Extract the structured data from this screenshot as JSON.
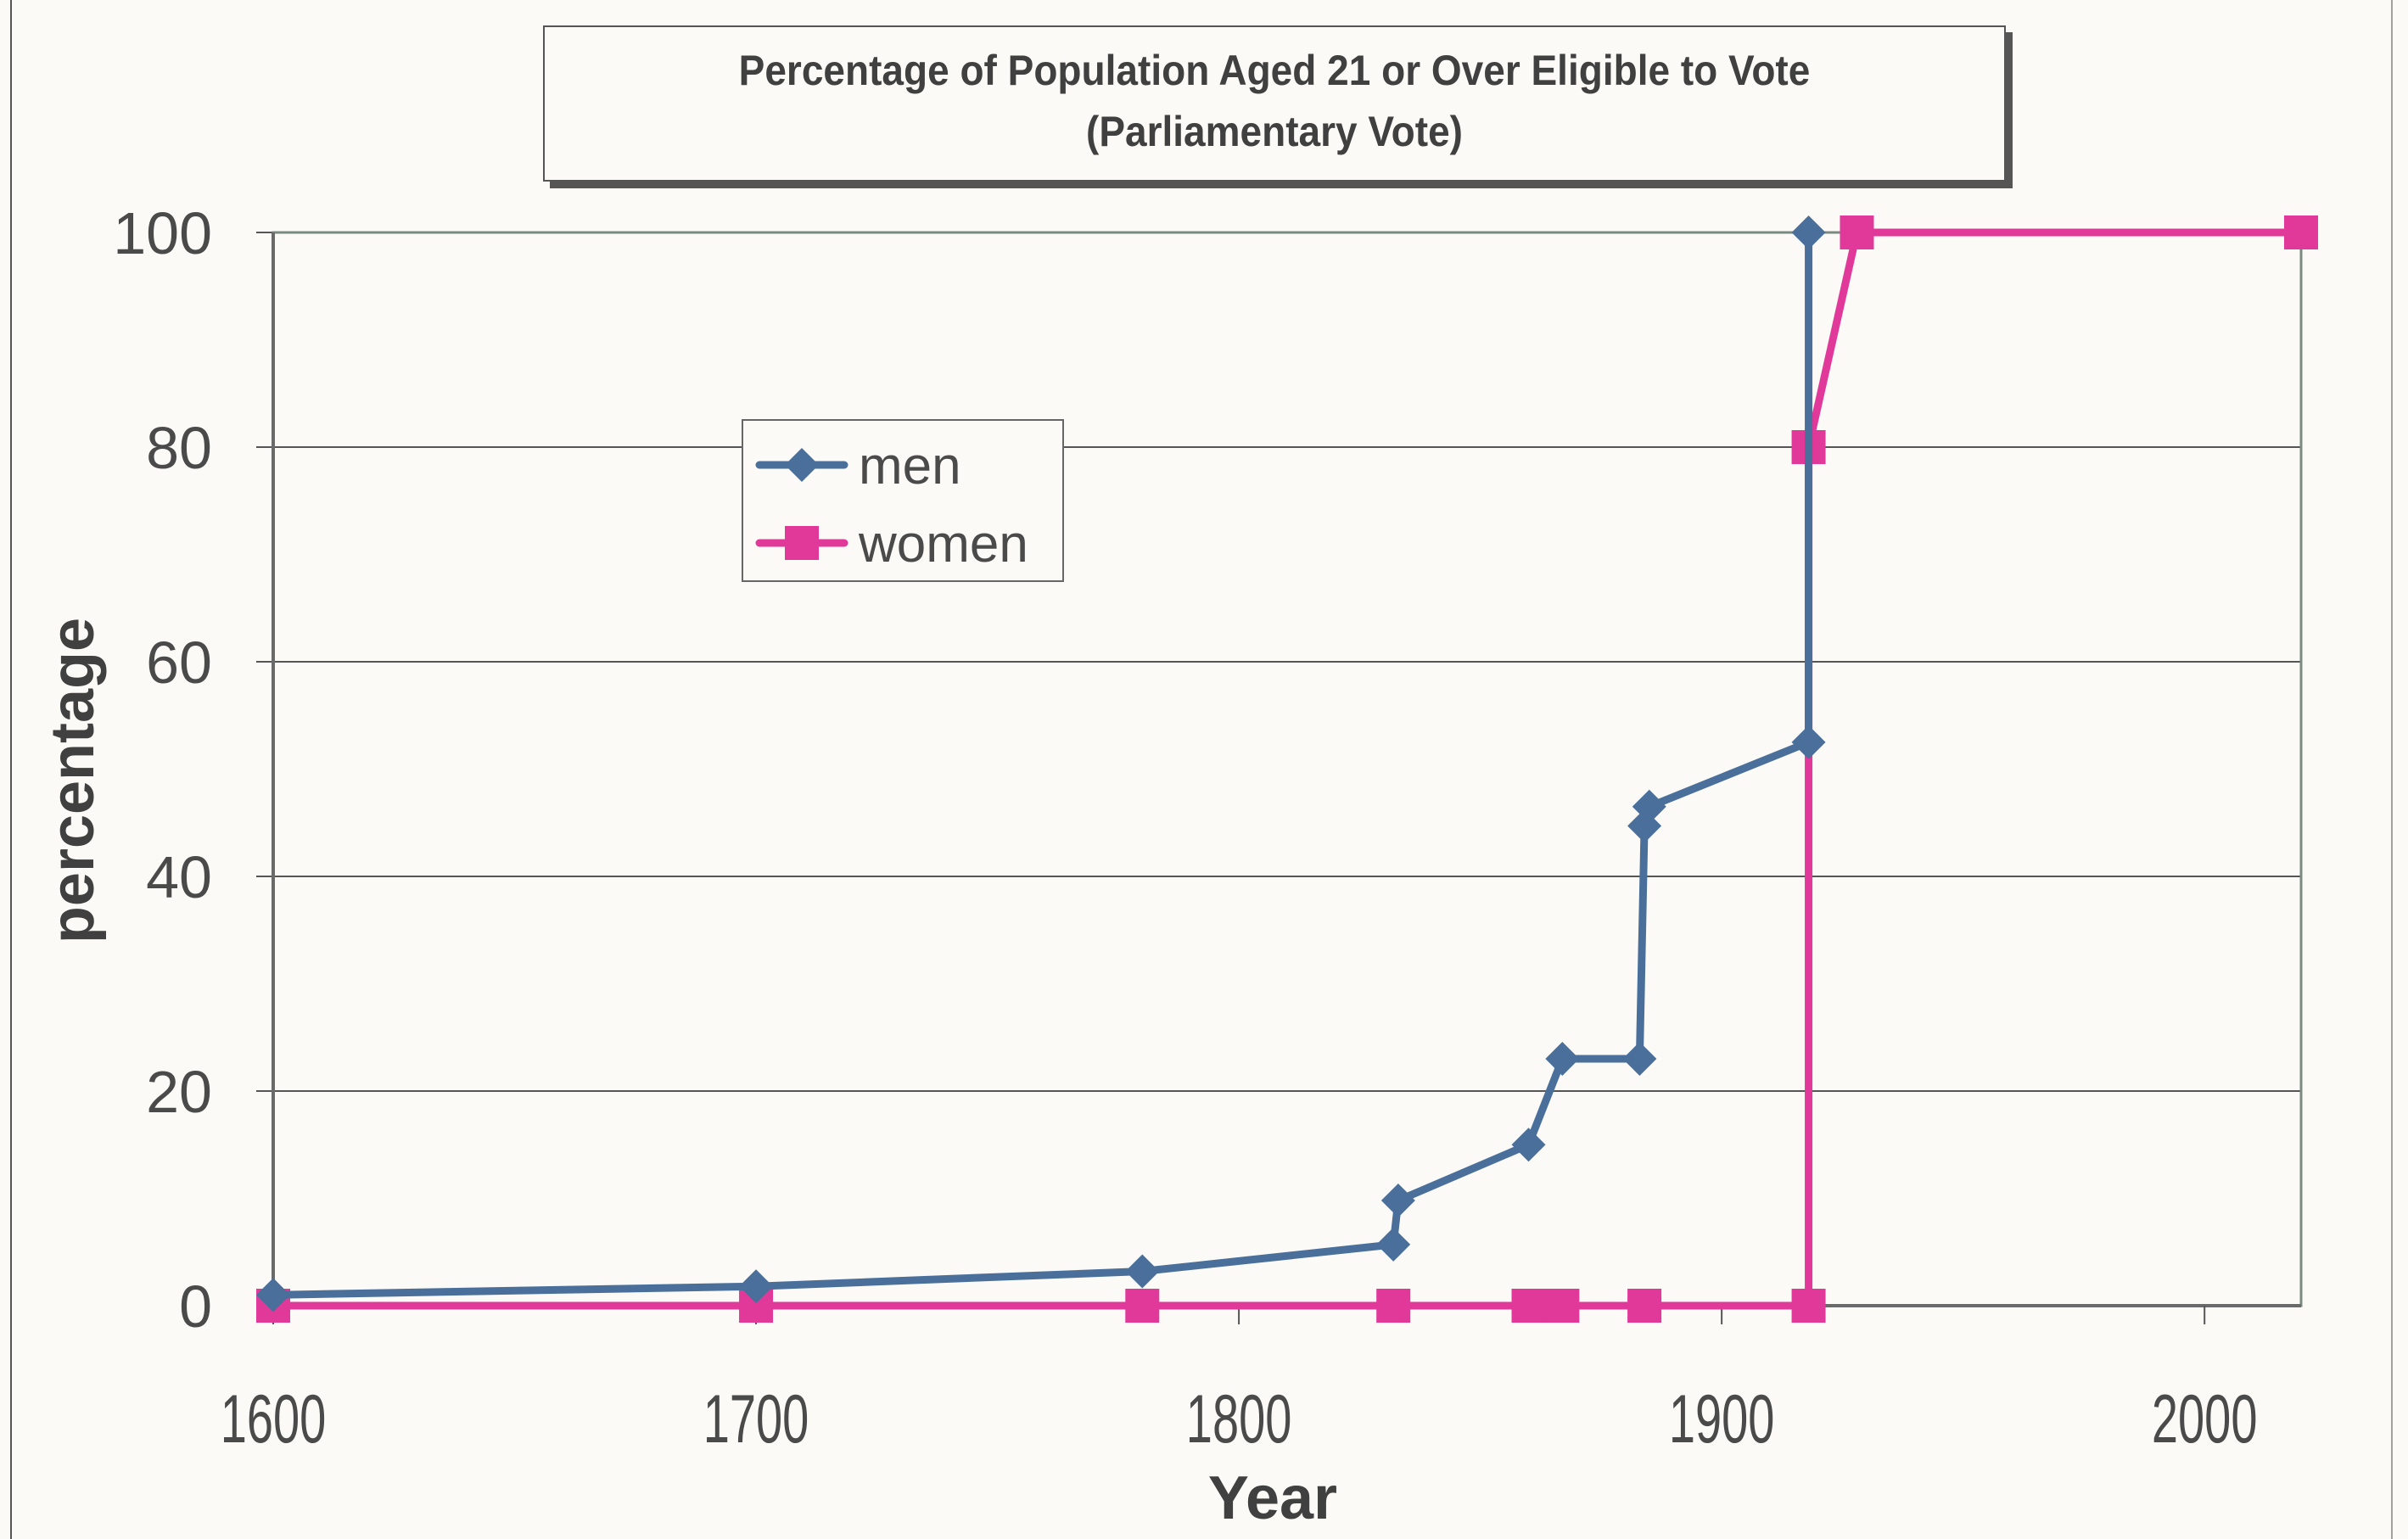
{
  "chart_data": {
    "type": "line",
    "title": "Percentage of Population Aged 21 or Over Eligible to Vote",
    "subtitle": "(Parliamentary Vote)",
    "xlabel": "Year",
    "ylabel": "percentage",
    "xlim": [
      1600,
      2020
    ],
    "ylim": [
      0,
      100
    ],
    "x_ticks": [
      1600,
      1700,
      1800,
      1900,
      2000
    ],
    "y_ticks": [
      0,
      20,
      40,
      60,
      80,
      100
    ],
    "grid": "horizontal",
    "legend_position": "upper-left-inside",
    "series": [
      {
        "name": "men",
        "color": "#4a6f9a",
        "marker": "diamond",
        "points": [
          [
            1600,
            1.0
          ],
          [
            1700,
            1.8
          ],
          [
            1780,
            3.2
          ],
          [
            1832,
            5.7
          ],
          [
            1833,
            9.8
          ],
          [
            1860,
            15.0
          ],
          [
            1867,
            23.0
          ],
          [
            1883,
            23.0
          ],
          [
            1884,
            44.7
          ],
          [
            1885,
            46.5
          ],
          [
            1918,
            52.5
          ],
          [
            1918,
            100
          ]
        ]
      },
      {
        "name": "women",
        "color": "#e0399a",
        "marker": "square",
        "points": [
          [
            1600,
            0
          ],
          [
            1700,
            0
          ],
          [
            1780,
            0
          ],
          [
            1832,
            0
          ],
          [
            1860,
            0
          ],
          [
            1867,
            0
          ],
          [
            1884,
            0
          ],
          [
            1918,
            0
          ],
          [
            1918,
            80
          ],
          [
            1928,
            100
          ],
          [
            2020,
            100
          ]
        ]
      }
    ]
  },
  "legend": {
    "items": [
      "men",
      "women"
    ]
  }
}
